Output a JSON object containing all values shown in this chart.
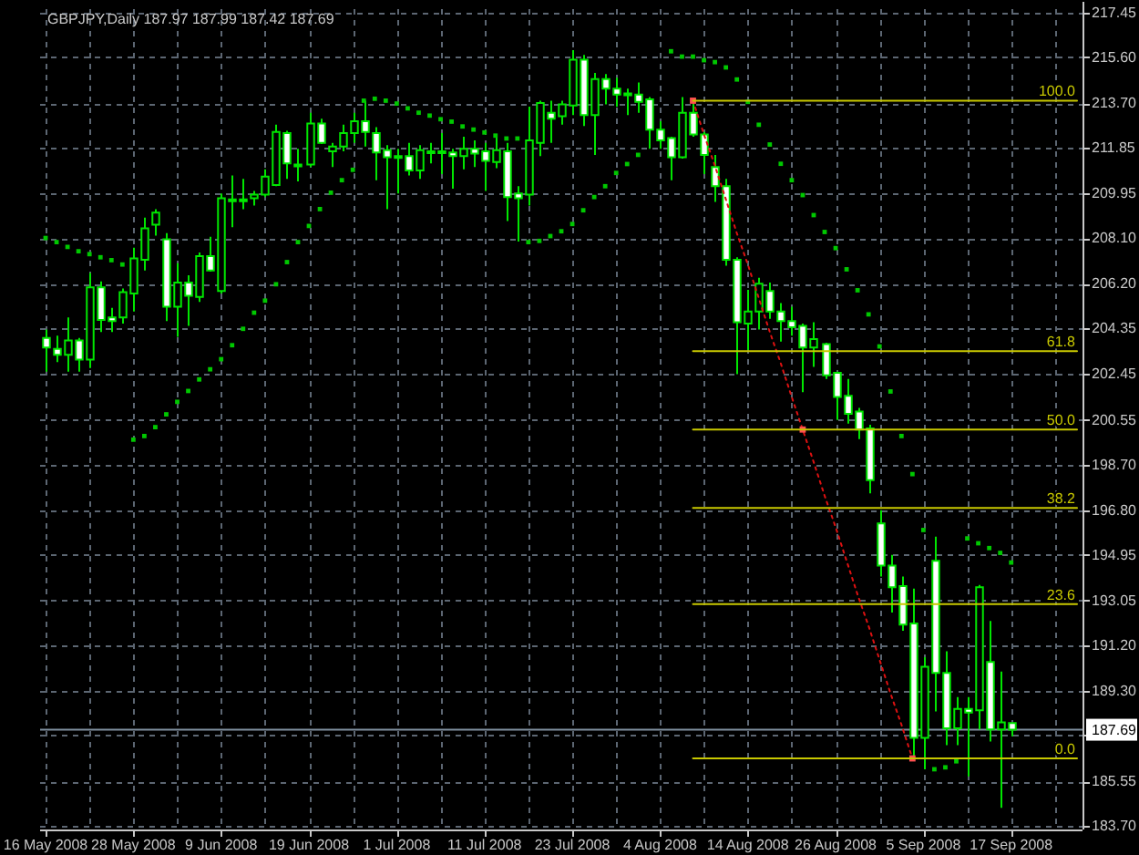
{
  "chart_data": {
    "type": "candlestick",
    "title": "GBPJPY,Daily 187.97 187.99 187.42 187.69",
    "color": "#00e600",
    "categories": [
      "16 May 2008",
      null,
      null,
      null,
      null,
      null,
      null,
      null,
      "28 May 2008",
      null,
      null,
      null,
      null,
      null,
      null,
      null,
      "9 Jun 2008",
      null,
      null,
      null,
      null,
      null,
      null,
      null,
      "19 Jun 2008",
      null,
      null,
      null,
      null,
      null,
      null,
      null,
      "1 Jul 2008",
      null,
      null,
      null,
      null,
      null,
      null,
      null,
      "11 Jul 2008",
      null,
      null,
      null,
      null,
      null,
      null,
      null,
      "23 Jul 2008",
      null,
      null,
      null,
      null,
      null,
      null,
      null,
      "4 Aug 2008",
      null,
      null,
      null,
      null,
      null,
      null,
      null,
      "14 Aug 2008",
      null,
      null,
      null,
      null,
      null,
      null,
      null,
      "26 Aug 2008",
      null,
      null,
      null,
      null,
      null,
      null,
      null,
      "5 Sep 2008",
      null,
      null,
      null,
      null,
      null,
      null,
      null,
      "17 Sep 2008",
      null,
      null,
      null,
      null,
      null,
      null
    ],
    "ohlc": [
      [
        203.95,
        204.3,
        202.55,
        203.55
      ],
      [
        203.5,
        204.05,
        202.95,
        203.25
      ],
      [
        203.25,
        204.8,
        202.55,
        203.85
      ],
      [
        203.85,
        203.95,
        202.55,
        203.05
      ],
      [
        203.05,
        206.65,
        202.7,
        206.05
      ],
      [
        206.05,
        206.3,
        204.2,
        204.7
      ],
      [
        204.8,
        205.2,
        204.2,
        204.65
      ],
      [
        204.8,
        206.0,
        204.55,
        205.85
      ],
      [
        205.8,
        207.7,
        205.05,
        207.25
      ],
      [
        207.2,
        208.95,
        206.75,
        208.5
      ],
      [
        208.65,
        209.3,
        208.2,
        209.15
      ],
      [
        208.05,
        208.3,
        204.65,
        205.25
      ],
      [
        205.25,
        207.05,
        204.0,
        206.25
      ],
      [
        206.25,
        206.55,
        204.45,
        205.7
      ],
      [
        205.65,
        207.5,
        205.45,
        207.35
      ],
      [
        207.35,
        208.15,
        206.7,
        206.75
      ],
      [
        205.9,
        209.95,
        205.8,
        209.75
      ],
      [
        209.7,
        210.7,
        208.55,
        209.65
      ],
      [
        209.7,
        210.55,
        209.3,
        209.65
      ],
      [
        209.75,
        210.05,
        209.45,
        209.9
      ],
      [
        209.9,
        210.95,
        209.8,
        210.65
      ],
      [
        210.3,
        212.8,
        210.25,
        212.5
      ],
      [
        212.45,
        212.55,
        210.55,
        211.2
      ],
      [
        211.15,
        211.8,
        210.45,
        211.1
      ],
      [
        211.15,
        213.3,
        211.05,
        212.85
      ],
      [
        212.85,
        213.05,
        212.0,
        212.05
      ],
      [
        211.7,
        212.05,
        211.05,
        211.9
      ],
      [
        211.9,
        212.8,
        211.7,
        212.45
      ],
      [
        212.45,
        213.3,
        212.05,
        212.95
      ],
      [
        212.95,
        213.8,
        211.9,
        212.5
      ],
      [
        212.45,
        212.7,
        210.5,
        211.65
      ],
      [
        211.75,
        211.95,
        209.3,
        211.45
      ],
      [
        211.5,
        211.8,
        209.95,
        211.45
      ],
      [
        211.5,
        212.05,
        210.7,
        210.9
      ],
      [
        210.9,
        211.95,
        210.55,
        211.75
      ],
      [
        211.65,
        212.05,
        211.2,
        211.7
      ],
      [
        211.7,
        212.45,
        210.75,
        211.65
      ],
      [
        211.65,
        211.8,
        210.15,
        211.5
      ],
      [
        211.5,
        212.3,
        210.95,
        211.8
      ],
      [
        211.8,
        212.15,
        211.05,
        211.6
      ],
      [
        211.7,
        212.05,
        210.05,
        211.3
      ],
      [
        211.25,
        212.4,
        211.0,
        211.75
      ],
      [
        211.7,
        212.05,
        208.8,
        209.8
      ],
      [
        209.95,
        210.25,
        207.95,
        209.75
      ],
      [
        209.9,
        213.55,
        209.45,
        212.15
      ],
      [
        212.05,
        213.8,
        211.5,
        213.7
      ],
      [
        213.3,
        213.8,
        212.05,
        213.05
      ],
      [
        213.15,
        213.8,
        212.8,
        213.65
      ],
      [
        213.6,
        215.9,
        213.2,
        215.5
      ],
      [
        215.5,
        215.7,
        212.75,
        213.2
      ],
      [
        213.2,
        214.95,
        211.55,
        214.7
      ],
      [
        214.7,
        214.9,
        213.65,
        214.3
      ],
      [
        214.3,
        214.75,
        213.55,
        214.05
      ],
      [
        214.05,
        214.3,
        213.2,
        214.1
      ],
      [
        214.05,
        214.55,
        213.3,
        213.75
      ],
      [
        213.85,
        213.95,
        211.8,
        212.6
      ],
      [
        212.6,
        212.95,
        211.8,
        212.15
      ],
      [
        212.25,
        212.3,
        210.5,
        211.45
      ],
      [
        211.45,
        213.95,
        211.4,
        213.3
      ],
      [
        213.3,
        213.8,
        212.3,
        212.4
      ],
      [
        212.4,
        212.5,
        210.75,
        211.55
      ],
      [
        211.05,
        211.55,
        209.6,
        210.25
      ],
      [
        210.25,
        210.55,
        206.95,
        207.2
      ],
      [
        207.2,
        207.3,
        202.45,
        204.6
      ],
      [
        204.55,
        205.95,
        203.45,
        205.05
      ],
      [
        205.05,
        206.45,
        204.3,
        206.2
      ],
      [
        205.9,
        206.25,
        204.75,
        205.05
      ],
      [
        205.05,
        205.4,
        203.8,
        204.65
      ],
      [
        204.65,
        205.25,
        204.05,
        204.4
      ],
      [
        204.45,
        204.55,
        201.7,
        203.55
      ],
      [
        203.55,
        204.6,
        202.75,
        203.9
      ],
      [
        203.7,
        203.75,
        202.25,
        202.4
      ],
      [
        202.5,
        202.55,
        200.55,
        201.5
      ],
      [
        201.55,
        202.25,
        200.4,
        200.8
      ],
      [
        200.9,
        201.05,
        199.75,
        200.15
      ],
      [
        200.2,
        200.35,
        197.5,
        198.05
      ],
      [
        196.25,
        196.8,
        194.05,
        194.5
      ],
      [
        194.5,
        194.95,
        192.55,
        193.6
      ],
      [
        193.65,
        194.05,
        191.8,
        192.05
      ],
      [
        192.1,
        193.55,
        186.5,
        187.35
      ],
      [
        187.35,
        190.7,
        186.05,
        190.3
      ],
      [
        194.7,
        195.7,
        188.45,
        190.05
      ],
      [
        190.05,
        190.95,
        187.05,
        187.75
      ],
      [
        187.75,
        189.05,
        187.05,
        188.55
      ],
      [
        188.55,
        189.05,
        185.75,
        188.4
      ],
      [
        188.5,
        193.7,
        187.7,
        193.6
      ],
      [
        190.5,
        192.2,
        187.2,
        187.7
      ],
      [
        187.7,
        190.1,
        184.45,
        188.0
      ],
      [
        187.97,
        187.99,
        187.42,
        187.69
      ],
      null,
      null,
      null,
      null,
      null,
      null
    ],
    "ylim": [
      183.55,
      217.6
    ],
    "yticks": [
      217.45,
      {
        "value": 215.6,
        "label": "215.60"
      },
      {
        "value": 213.7,
        "label": "213.70"
      },
      211.85,
      209.95,
      {
        "value": 208.1,
        "label": "208.10"
      },
      {
        "value": 206.2,
        "label": "206.20"
      },
      204.35,
      202.45,
      200.55,
      {
        "value": 198.7,
        "label": "198.70"
      },
      {
        "value": 196.8,
        "label": "196.80"
      },
      194.95,
      193.05,
      {
        "value": 191.2,
        "label": "191.20"
      },
      {
        "value": 189.3,
        "label": "189.30"
      },
      {
        "value": 187.45,
        "label": null
      },
      185.55,
      {
        "value": 183.7,
        "label": "183.70"
      }
    ],
    "grid": true,
    "ref_lines": [
      {
        "axis": "y",
        "value": 187.69,
        "label": "187.69",
        "color": "#8090a0"
      }
    ],
    "series": [
      {
        "type": "scatter",
        "color": "#00c800",
        "marker": "square",
        "values": [
          208.1,
          207.93,
          207.73,
          207.55,
          207.43,
          207.3,
          207.18,
          207.0,
          199.73,
          199.88,
          200.25,
          200.78,
          201.3,
          201.75,
          202.23,
          202.65,
          203.07,
          203.65,
          204.33,
          205.0,
          205.5,
          206.18,
          207.1,
          207.93,
          208.6,
          209.3,
          209.98,
          210.5,
          210.93,
          213.8,
          213.88,
          213.8,
          213.68,
          213.48,
          213.3,
          213.18,
          213.03,
          212.93,
          212.73,
          212.6,
          212.48,
          212.35,
          212.23,
          212.23,
          207.93,
          207.98,
          208.18,
          208.38,
          208.68,
          209.25,
          209.8,
          210.25,
          210.8,
          211.17,
          211.55,
          null,
          null,
          215.85,
          215.63,
          215.63,
          215.48,
          215.4,
          215.18,
          214.68,
          213.75,
          212.8,
          211.98,
          211.18,
          210.5,
          209.88,
          209.05,
          208.35,
          207.68,
          206.8,
          205.93,
          204.93,
          203.6,
          201.73,
          199.88,
          198.3,
          195.98,
          186.05,
          186.13,
          186.38,
          195.63,
          195.43,
          195.23,
          195.03,
          194.63,
          null,
          null,
          null,
          null,
          null,
          null
        ]
      },
      {
        "type": "line",
        "color": "#dd1111",
        "line_style": "dotted",
        "values": [
          null,
          null,
          null,
          null,
          null,
          null,
          null,
          null,
          null,
          null,
          null,
          null,
          null,
          null,
          null,
          null,
          null,
          null,
          null,
          null,
          null,
          null,
          null,
          null,
          null,
          null,
          null,
          null,
          null,
          null,
          null,
          null,
          null,
          null,
          null,
          null,
          null,
          null,
          null,
          null,
          null,
          null,
          null,
          null,
          null,
          null,
          null,
          null,
          null,
          null,
          null,
          null,
          null,
          null,
          null,
          null,
          null,
          null,
          null,
          213.8,
          212.4,
          211.1,
          209.7,
          208.3,
          207.0,
          205.6,
          204.2,
          202.9,
          201.5,
          200.15,
          198.8,
          197.4,
          196.1,
          194.7,
          193.3,
          192.0,
          190.6,
          189.2,
          187.9,
          186.5,
          null,
          null,
          null,
          null,
          null,
          null,
          null,
          null,
          null,
          null,
          null,
          null,
          null,
          null,
          null
        ]
      },
      {
        "type": "scatter",
        "color": "#ff5050",
        "marker": "square",
        "values": [
          null,
          null,
          null,
          null,
          null,
          null,
          null,
          null,
          null,
          null,
          null,
          null,
          null,
          null,
          null,
          null,
          null,
          null,
          null,
          null,
          null,
          null,
          null,
          null,
          null,
          null,
          null,
          null,
          null,
          null,
          null,
          null,
          null,
          null,
          null,
          null,
          null,
          null,
          null,
          null,
          null,
          null,
          null,
          null,
          null,
          null,
          null,
          null,
          null,
          null,
          null,
          null,
          null,
          null,
          null,
          null,
          null,
          null,
          null,
          213.8,
          null,
          null,
          null,
          null,
          null,
          null,
          null,
          null,
          null,
          200.15,
          null,
          null,
          null,
          null,
          null,
          null,
          null,
          null,
          null,
          186.5,
          null,
          null,
          null,
          null,
          null,
          null,
          null,
          null,
          null,
          null,
          null,
          null,
          null,
          null,
          null
        ]
      },
      {
        "type": "line",
        "name": "100.0",
        "color": "#c8c800",
        "values": [
          null,
          null,
          null,
          null,
          null,
          null,
          null,
          null,
          null,
          null,
          null,
          null,
          null,
          null,
          null,
          null,
          null,
          null,
          null,
          null,
          null,
          null,
          null,
          null,
          null,
          null,
          null,
          null,
          null,
          null,
          null,
          null,
          null,
          null,
          null,
          null,
          null,
          null,
          null,
          null,
          null,
          null,
          null,
          null,
          null,
          null,
          null,
          null,
          null,
          null,
          null,
          null,
          null,
          null,
          null,
          null,
          null,
          null,
          null,
          213.8,
          213.8,
          213.8,
          213.8,
          213.8,
          213.8,
          213.8,
          213.8,
          213.8,
          213.8,
          213.8,
          213.8,
          213.8,
          213.8,
          213.8,
          213.8,
          213.8,
          213.8,
          213.8,
          213.8,
          213.8,
          213.8,
          213.8,
          213.8,
          213.8,
          213.8,
          213.8,
          213.8,
          213.8,
          213.8,
          213.8,
          213.8,
          213.8,
          213.8,
          213.8,
          213.8
        ]
      },
      {
        "type": "line",
        "name": "61.8",
        "color": "#c8c800",
        "values": [
          null,
          null,
          null,
          null,
          null,
          null,
          null,
          null,
          null,
          null,
          null,
          null,
          null,
          null,
          null,
          null,
          null,
          null,
          null,
          null,
          null,
          null,
          null,
          null,
          null,
          null,
          null,
          null,
          null,
          null,
          null,
          null,
          null,
          null,
          null,
          null,
          null,
          null,
          null,
          null,
          null,
          null,
          null,
          null,
          null,
          null,
          null,
          null,
          null,
          null,
          null,
          null,
          null,
          null,
          null,
          null,
          null,
          null,
          null,
          203.4,
          203.4,
          203.4,
          203.4,
          203.4,
          203.4,
          203.4,
          203.4,
          203.4,
          203.4,
          203.4,
          203.4,
          203.4,
          203.4,
          203.4,
          203.4,
          203.4,
          203.4,
          203.4,
          203.4,
          203.4,
          203.4,
          203.4,
          203.4,
          203.4,
          203.4,
          203.4,
          203.4,
          203.4,
          203.4,
          203.4,
          203.4,
          203.4,
          203.4,
          203.4,
          203.4
        ]
      },
      {
        "type": "line",
        "name": "50.0",
        "color": "#c8c800",
        "values": [
          null,
          null,
          null,
          null,
          null,
          null,
          null,
          null,
          null,
          null,
          null,
          null,
          null,
          null,
          null,
          null,
          null,
          null,
          null,
          null,
          null,
          null,
          null,
          null,
          null,
          null,
          null,
          null,
          null,
          null,
          null,
          null,
          null,
          null,
          null,
          null,
          null,
          null,
          null,
          null,
          null,
          null,
          null,
          null,
          null,
          null,
          null,
          null,
          null,
          null,
          null,
          null,
          null,
          null,
          null,
          null,
          null,
          null,
          null,
          200.15,
          200.15,
          200.15,
          200.15,
          200.15,
          200.15,
          200.15,
          200.15,
          200.15,
          200.15,
          200.15,
          200.15,
          200.15,
          200.15,
          200.15,
          200.15,
          200.15,
          200.15,
          200.15,
          200.15,
          200.15,
          200.15,
          200.15,
          200.15,
          200.15,
          200.15,
          200.15,
          200.15,
          200.15,
          200.15,
          200.15,
          200.15,
          200.15,
          200.15,
          200.15,
          200.15
        ]
      },
      {
        "type": "line",
        "name": "38.2",
        "color": "#c8c800",
        "values": [
          null,
          null,
          null,
          null,
          null,
          null,
          null,
          null,
          null,
          null,
          null,
          null,
          null,
          null,
          null,
          null,
          null,
          null,
          null,
          null,
          null,
          null,
          null,
          null,
          null,
          null,
          null,
          null,
          null,
          null,
          null,
          null,
          null,
          null,
          null,
          null,
          null,
          null,
          null,
          null,
          null,
          null,
          null,
          null,
          null,
          null,
          null,
          null,
          null,
          null,
          null,
          null,
          null,
          null,
          null,
          null,
          null,
          null,
          null,
          196.9,
          196.9,
          196.9,
          196.9,
          196.9,
          196.9,
          196.9,
          196.9,
          196.9,
          196.9,
          196.9,
          196.9,
          196.9,
          196.9,
          196.9,
          196.9,
          196.9,
          196.9,
          196.9,
          196.9,
          196.9,
          196.9,
          196.9,
          196.9,
          196.9,
          196.9,
          196.9,
          196.9,
          196.9,
          196.9,
          196.9,
          196.9,
          196.9,
          196.9,
          196.9,
          196.9
        ]
      },
      {
        "type": "line",
        "name": "23.6",
        "color": "#c8c800",
        "values": [
          null,
          null,
          null,
          null,
          null,
          null,
          null,
          null,
          null,
          null,
          null,
          null,
          null,
          null,
          null,
          null,
          null,
          null,
          null,
          null,
          null,
          null,
          null,
          null,
          null,
          null,
          null,
          null,
          null,
          null,
          null,
          null,
          null,
          null,
          null,
          null,
          null,
          null,
          null,
          null,
          null,
          null,
          null,
          null,
          null,
          null,
          null,
          null,
          null,
          null,
          null,
          null,
          null,
          null,
          null,
          null,
          null,
          null,
          null,
          192.9,
          192.9,
          192.9,
          192.9,
          192.9,
          192.9,
          192.9,
          192.9,
          192.9,
          192.9,
          192.9,
          192.9,
          192.9,
          192.9,
          192.9,
          192.9,
          192.9,
          192.9,
          192.9,
          192.9,
          192.9,
          192.9,
          192.9,
          192.9,
          192.9,
          192.9,
          192.9,
          192.9,
          192.9,
          192.9,
          192.9,
          192.9,
          192.9,
          192.9,
          192.9,
          192.9
        ]
      },
      {
        "type": "line",
        "name": "0.0",
        "color": "#c8c800",
        "values": [
          null,
          null,
          null,
          null,
          null,
          null,
          null,
          null,
          null,
          null,
          null,
          null,
          null,
          null,
          null,
          null,
          null,
          null,
          null,
          null,
          null,
          null,
          null,
          null,
          null,
          null,
          null,
          null,
          null,
          null,
          null,
          null,
          null,
          null,
          null,
          null,
          null,
          null,
          null,
          null,
          null,
          null,
          null,
          null,
          null,
          null,
          null,
          null,
          null,
          null,
          null,
          null,
          null,
          null,
          null,
          null,
          null,
          null,
          null,
          186.5,
          186.5,
          186.5,
          186.5,
          186.5,
          186.5,
          186.5,
          186.5,
          186.5,
          186.5,
          186.5,
          186.5,
          186.5,
          186.5,
          186.5,
          186.5,
          186.5,
          186.5,
          186.5,
          186.5,
          186.5,
          186.5,
          186.5,
          186.5,
          186.5,
          186.5,
          186.5,
          186.5,
          186.5,
          186.5,
          186.5,
          186.5,
          186.5,
          186.5,
          186.5,
          186.5
        ]
      }
    ]
  }
}
